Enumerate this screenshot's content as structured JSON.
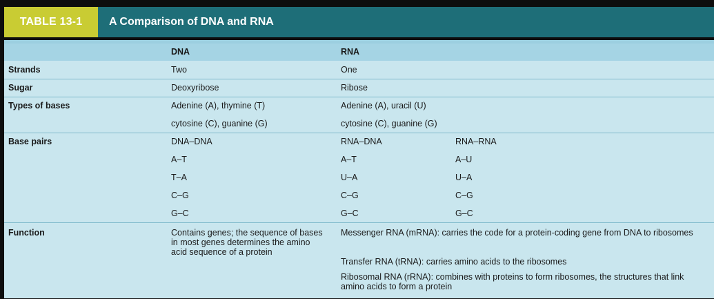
{
  "table_label": "TABLE 13-1",
  "title": "A Comparison of DNA and RNA",
  "columns": {
    "dna": "DNA",
    "rna": "RNA"
  },
  "rows": {
    "strands": {
      "label": "Strands",
      "dna": "Two",
      "rna": "One"
    },
    "sugar": {
      "label": "Sugar",
      "dna": "Deoxyribose",
      "rna": "Ribose"
    },
    "bases": {
      "label": "Types of bases",
      "dna": [
        "Adenine (A), thymine (T)",
        "cytosine (C), guanine (G)"
      ],
      "rna": [
        "Adenine (A), uracil (U)",
        "cytosine (C), guanine (G)"
      ]
    },
    "base_pairs": {
      "label": "Base pairs",
      "dna_dna": [
        "DNA–DNA",
        "A–T",
        "T–A",
        "C–G",
        "G–C"
      ],
      "rna_dna": [
        "RNA–DNA",
        "A–T",
        "U–A",
        "C–G",
        "G–C"
      ],
      "rna_rna": [
        "RNA–RNA",
        "A–U",
        "U–A",
        "C–G",
        "G–C"
      ]
    },
    "function": {
      "label": "Function",
      "dna": "Contains genes; the sequence of bases in most genes determines the amino acid sequence of a protein",
      "rna": [
        "Messenger RNA (mRNA): carries the code for a protein-coding gene from DNA to ribosomes",
        "Transfer RNA (tRNA): carries amino acids to the ribosomes",
        "Ribosomal RNA (rRNA): combines with proteins to form ribosomes, the structures that link amino acids to form a protein"
      ]
    }
  },
  "colors": {
    "header_bg": "#1e6e78",
    "tag_bg": "#c9cc33",
    "table_bg": "#c9e6ee",
    "header_row_bg": "#a5d4e4"
  }
}
